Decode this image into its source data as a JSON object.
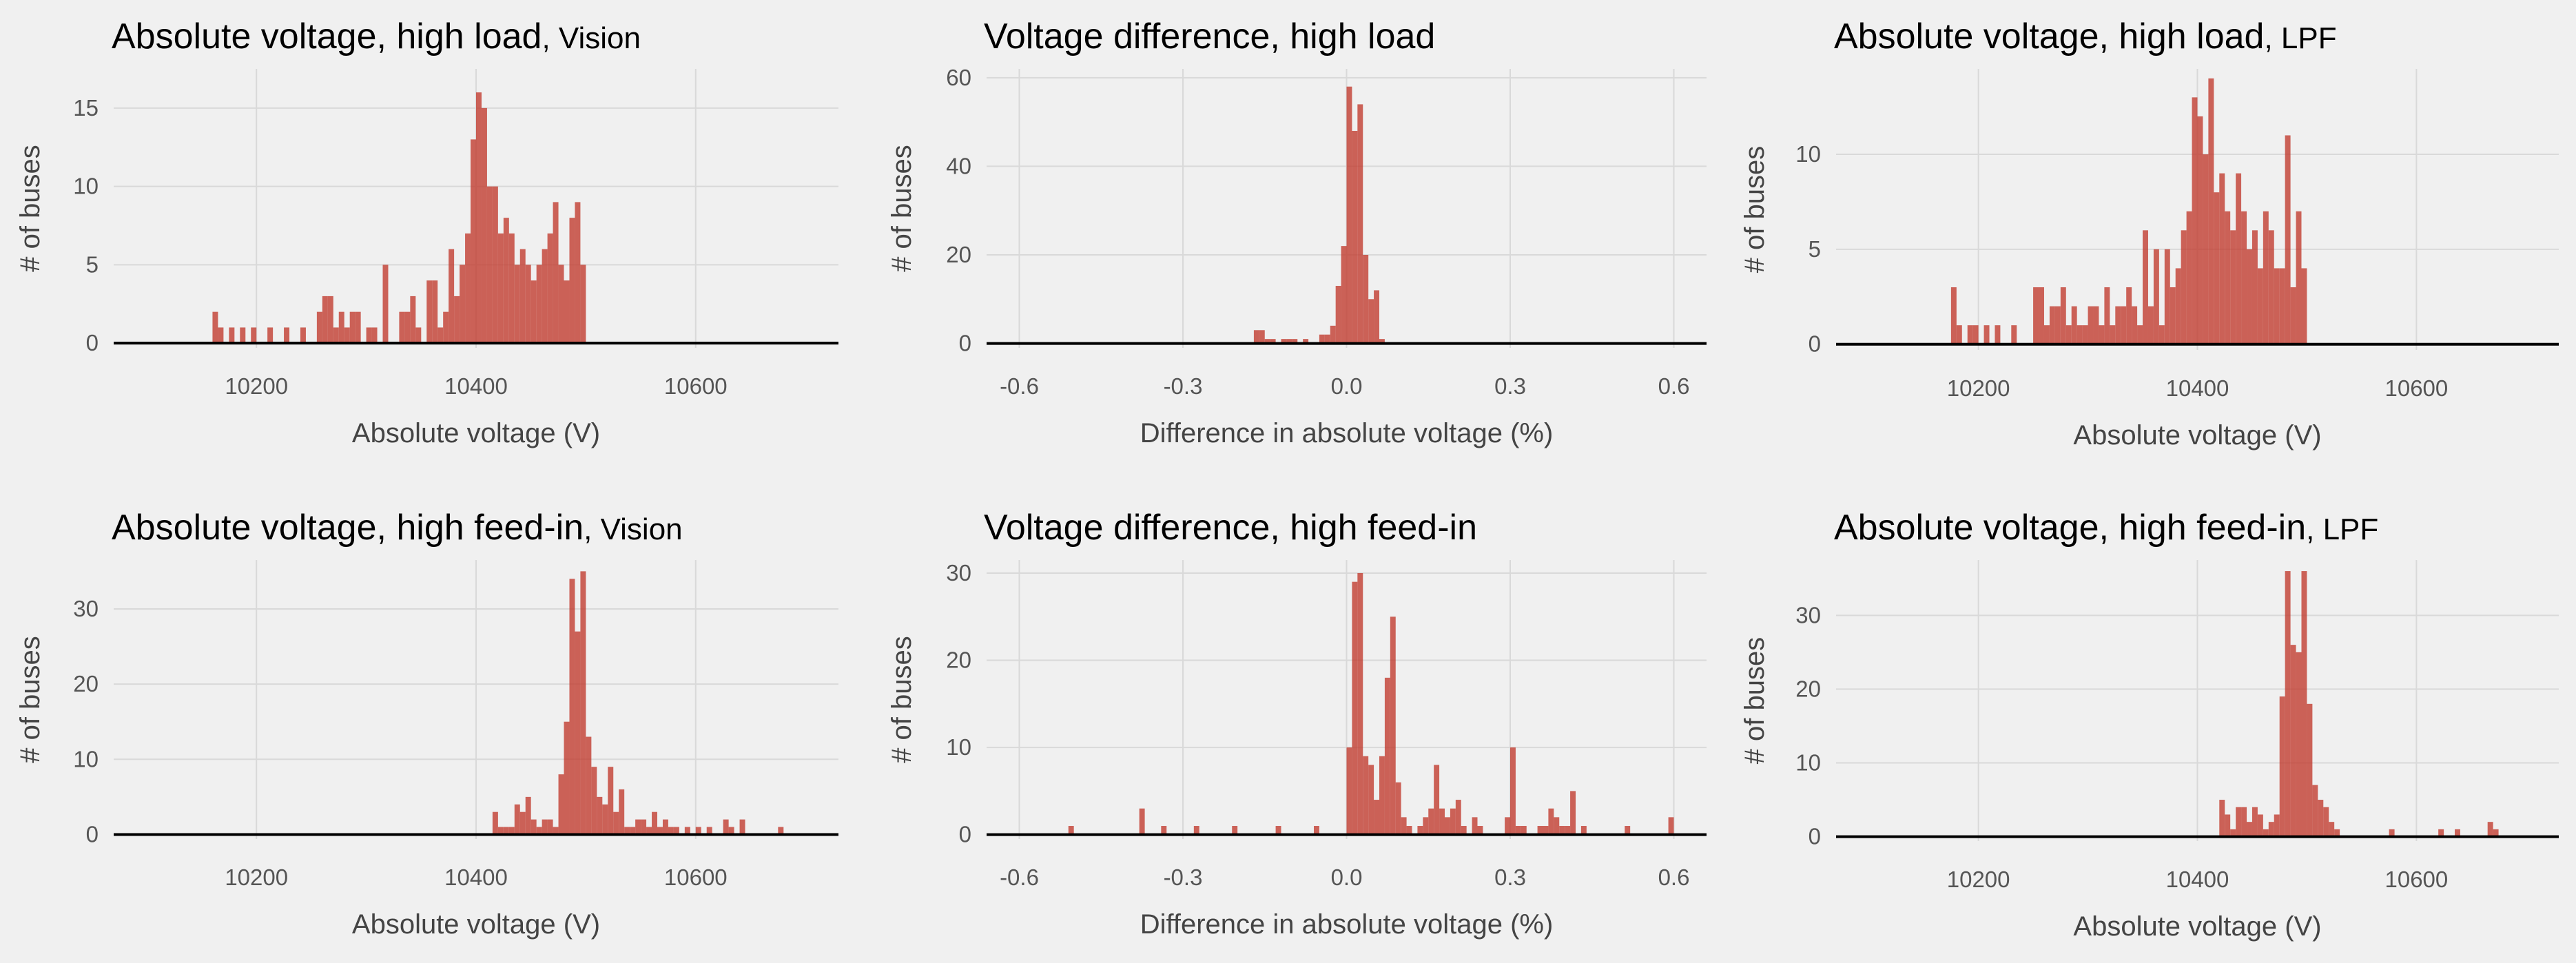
{
  "figure": {
    "background": "#f0f0f0",
    "bar_color": "#c0392b",
    "grid_color": "#d9d9d9"
  },
  "chart_data": [
    {
      "type": "bar",
      "title": "Absolute voltage, high load",
      "title_suffix": ", Vision",
      "xlabel": "Absolute voltage (V)",
      "ylabel": "# of buses",
      "xlim": [
        10070,
        10730
      ],
      "ylim": [
        -0.3,
        17.5
      ],
      "xticks": [
        10200,
        10400,
        10600
      ],
      "xtick_labels": [
        "10200",
        "10400",
        "10600"
      ],
      "yticks": [
        0,
        5,
        10,
        15
      ],
      "ytick_labels": [
        "0",
        "5",
        "10",
        "15"
      ],
      "grid": true,
      "bins": [
        [
          10160,
          2
        ],
        [
          10165,
          1
        ],
        [
          10175,
          1
        ],
        [
          10185,
          1
        ],
        [
          10195,
          1
        ],
        [
          10210,
          1
        ],
        [
          10225,
          1
        ],
        [
          10240,
          1
        ],
        [
          10255,
          2
        ],
        [
          10260,
          3
        ],
        [
          10265,
          3
        ],
        [
          10270,
          1
        ],
        [
          10275,
          2
        ],
        [
          10280,
          1
        ],
        [
          10285,
          2
        ],
        [
          10290,
          2
        ],
        [
          10300,
          1
        ],
        [
          10305,
          1
        ],
        [
          10315,
          5
        ],
        [
          10330,
          2
        ],
        [
          10335,
          2
        ],
        [
          10340,
          3
        ],
        [
          10345,
          1
        ],
        [
          10355,
          4
        ],
        [
          10360,
          4
        ],
        [
          10365,
          1
        ],
        [
          10370,
          2
        ],
        [
          10375,
          6
        ],
        [
          10380,
          3
        ],
        [
          10385,
          5
        ],
        [
          10390,
          7
        ],
        [
          10395,
          13
        ],
        [
          10400,
          16
        ],
        [
          10405,
          15
        ],
        [
          10410,
          10
        ],
        [
          10415,
          10
        ],
        [
          10420,
          7
        ],
        [
          10425,
          8
        ],
        [
          10430,
          7
        ],
        [
          10435,
          5
        ],
        [
          10440,
          6
        ],
        [
          10445,
          5
        ],
        [
          10450,
          4
        ],
        [
          10455,
          5
        ],
        [
          10460,
          6
        ],
        [
          10465,
          7
        ],
        [
          10470,
          9
        ],
        [
          10475,
          5
        ],
        [
          10480,
          4
        ],
        [
          10485,
          8
        ],
        [
          10490,
          9
        ],
        [
          10495,
          5
        ]
      ]
    },
    {
      "type": "bar",
      "title": "Voltage difference, high load",
      "xlabel": "Difference in absolute voltage (%)",
      "ylabel": "# of buses",
      "xlim": [
        -0.66,
        0.66
      ],
      "ylim": [
        -1,
        62
      ],
      "xticks": [
        -0.6,
        -0.3,
        0.0,
        0.3,
        0.6
      ],
      "xtick_labels": [
        "-0.6",
        "-0.3",
        "0.0",
        "0.3",
        "0.6"
      ],
      "yticks": [
        0,
        20,
        40,
        60
      ],
      "ytick_labels": [
        "0",
        "20",
        "40",
        "60"
      ],
      "grid": true,
      "bins": [
        [
          -0.17,
          3
        ],
        [
          -0.16,
          3
        ],
        [
          -0.15,
          1
        ],
        [
          -0.14,
          1
        ],
        [
          -0.12,
          1
        ],
        [
          -0.11,
          1
        ],
        [
          -0.1,
          1
        ],
        [
          -0.08,
          1
        ],
        [
          -0.05,
          2
        ],
        [
          -0.04,
          2
        ],
        [
          -0.03,
          4
        ],
        [
          -0.02,
          13
        ],
        [
          -0.01,
          22
        ],
        [
          0.0,
          58
        ],
        [
          0.01,
          48
        ],
        [
          0.02,
          54
        ],
        [
          0.03,
          20
        ],
        [
          0.04,
          10
        ],
        [
          0.05,
          12
        ],
        [
          0.06,
          1
        ]
      ]
    },
    {
      "type": "bar",
      "title": "Absolute voltage, high load",
      "title_suffix": ", LPF",
      "xlabel": "Absolute voltage (V)",
      "ylabel": "# of buses",
      "xlim": [
        10070,
        10730
      ],
      "ylim": [
        -0.3,
        14.5
      ],
      "xticks": [
        10200,
        10400,
        10600
      ],
      "xtick_labels": [
        "10200",
        "10400",
        "10600"
      ],
      "yticks": [
        0,
        5,
        10
      ],
      "ytick_labels": [
        "0",
        "5",
        "10"
      ],
      "grid": true,
      "bins": [
        [
          10175,
          3
        ],
        [
          10180,
          1
        ],
        [
          10190,
          1
        ],
        [
          10195,
          1
        ],
        [
          10205,
          1
        ],
        [
          10215,
          1
        ],
        [
          10230,
          1
        ],
        [
          10250,
          3
        ],
        [
          10255,
          3
        ],
        [
          10260,
          1
        ],
        [
          10265,
          2
        ],
        [
          10270,
          2
        ],
        [
          10275,
          3
        ],
        [
          10280,
          1
        ],
        [
          10285,
          2
        ],
        [
          10290,
          1
        ],
        [
          10295,
          1
        ],
        [
          10300,
          2
        ],
        [
          10305,
          2
        ],
        [
          10310,
          1
        ],
        [
          10315,
          3
        ],
        [
          10320,
          1
        ],
        [
          10325,
          2
        ],
        [
          10330,
          2
        ],
        [
          10335,
          3
        ],
        [
          10340,
          2
        ],
        [
          10345,
          1
        ],
        [
          10350,
          6
        ],
        [
          10355,
          2
        ],
        [
          10360,
          5
        ],
        [
          10365,
          1
        ],
        [
          10370,
          5
        ],
        [
          10375,
          3
        ],
        [
          10380,
          4
        ],
        [
          10385,
          6
        ],
        [
          10390,
          7
        ],
        [
          10395,
          13
        ],
        [
          10400,
          12
        ],
        [
          10405,
          10
        ],
        [
          10410,
          14
        ],
        [
          10415,
          8
        ],
        [
          10420,
          9
        ],
        [
          10425,
          7
        ],
        [
          10430,
          6
        ],
        [
          10435,
          9
        ],
        [
          10440,
          7
        ],
        [
          10445,
          5
        ],
        [
          10450,
          6
        ],
        [
          10455,
          4
        ],
        [
          10460,
          7
        ],
        [
          10465,
          6
        ],
        [
          10470,
          4
        ],
        [
          10475,
          4
        ],
        [
          10480,
          11
        ],
        [
          10485,
          3
        ],
        [
          10490,
          7
        ],
        [
          10495,
          4
        ]
      ]
    },
    {
      "type": "bar",
      "title": "Absolute voltage, high feed-in",
      "title_suffix": ", Vision",
      "xlabel": "Absolute voltage (V)",
      "ylabel": "# of buses",
      "xlim": [
        10070,
        10730
      ],
      "ylim": [
        -0.6,
        36.5
      ],
      "xticks": [
        10200,
        10400,
        10600
      ],
      "xtick_labels": [
        "10200",
        "10400",
        "10600"
      ],
      "yticks": [
        0,
        10,
        20,
        30
      ],
      "ytick_labels": [
        "0",
        "10",
        "20",
        "30"
      ],
      "grid": true,
      "bins": [
        [
          10415,
          3
        ],
        [
          10420,
          1
        ],
        [
          10425,
          1
        ],
        [
          10430,
          1
        ],
        [
          10435,
          4
        ],
        [
          10440,
          3
        ],
        [
          10445,
          5
        ],
        [
          10450,
          2
        ],
        [
          10455,
          1
        ],
        [
          10460,
          2
        ],
        [
          10465,
          2
        ],
        [
          10470,
          1
        ],
        [
          10475,
          8
        ],
        [
          10480,
          15
        ],
        [
          10485,
          34
        ],
        [
          10490,
          27
        ],
        [
          10495,
          35
        ],
        [
          10500,
          13
        ],
        [
          10505,
          9
        ],
        [
          10510,
          5
        ],
        [
          10515,
          4
        ],
        [
          10520,
          9
        ],
        [
          10525,
          3
        ],
        [
          10530,
          6
        ],
        [
          10535,
          1
        ],
        [
          10540,
          1
        ],
        [
          10545,
          2
        ],
        [
          10550,
          2
        ],
        [
          10555,
          1
        ],
        [
          10560,
          3
        ],
        [
          10565,
          1
        ],
        [
          10570,
          2
        ],
        [
          10575,
          1
        ],
        [
          10580,
          1
        ],
        [
          10590,
          1
        ],
        [
          10600,
          1
        ],
        [
          10610,
          1
        ],
        [
          10625,
          2
        ],
        [
          10630,
          1
        ],
        [
          10640,
          2
        ],
        [
          10675,
          1
        ]
      ]
    },
    {
      "type": "bar",
      "title": "Voltage difference, high feed-in",
      "xlabel": "Difference in absolute voltage (%)",
      "ylabel": "# of buses",
      "xlim": [
        -0.66,
        0.66
      ],
      "ylim": [
        -0.5,
        31.5
      ],
      "xticks": [
        -0.6,
        -0.3,
        0.0,
        0.3,
        0.6
      ],
      "xtick_labels": [
        "-0.6",
        "-0.3",
        "0.0",
        "0.3",
        "0.6"
      ],
      "yticks": [
        0,
        10,
        20,
        30
      ],
      "ytick_labels": [
        "0",
        "10",
        "20",
        "30"
      ],
      "grid": true,
      "bins": [
        [
          -0.51,
          1
        ],
        [
          -0.38,
          3
        ],
        [
          -0.34,
          1
        ],
        [
          -0.28,
          1
        ],
        [
          -0.21,
          1
        ],
        [
          -0.13,
          1
        ],
        [
          -0.06,
          1
        ],
        [
          0.0,
          10
        ],
        [
          0.01,
          29
        ],
        [
          0.02,
          30
        ],
        [
          0.03,
          9
        ],
        [
          0.04,
          8
        ],
        [
          0.05,
          4
        ],
        [
          0.06,
          9
        ],
        [
          0.07,
          18
        ],
        [
          0.08,
          25
        ],
        [
          0.09,
          6
        ],
        [
          0.1,
          2
        ],
        [
          0.11,
          1
        ],
        [
          0.13,
          1
        ],
        [
          0.14,
          2
        ],
        [
          0.15,
          3
        ],
        [
          0.16,
          8
        ],
        [
          0.17,
          3
        ],
        [
          0.18,
          2
        ],
        [
          0.19,
          3
        ],
        [
          0.2,
          4
        ],
        [
          0.21,
          1
        ],
        [
          0.23,
          2
        ],
        [
          0.24,
          1
        ],
        [
          0.29,
          2
        ],
        [
          0.3,
          10
        ],
        [
          0.31,
          1
        ],
        [
          0.32,
          1
        ],
        [
          0.35,
          1
        ],
        [
          0.36,
          1
        ],
        [
          0.37,
          3
        ],
        [
          0.38,
          2
        ],
        [
          0.39,
          1
        ],
        [
          0.4,
          1
        ],
        [
          0.41,
          5
        ],
        [
          0.43,
          1
        ],
        [
          0.51,
          1
        ],
        [
          0.59,
          2
        ]
      ]
    },
    {
      "type": "bar",
      "title": "Absolute voltage, high feed-in",
      "title_suffix": ", LPF",
      "xlabel": "Absolute voltage (V)",
      "ylabel": "# of buses",
      "xlim": [
        10070,
        10730
      ],
      "ylim": [
        -0.6,
        37.5
      ],
      "xticks": [
        10200,
        10400,
        10600
      ],
      "xtick_labels": [
        "10200",
        "10400",
        "10600"
      ],
      "yticks": [
        0,
        10,
        20,
        30
      ],
      "ytick_labels": [
        "0",
        "10",
        "20",
        "30"
      ],
      "grid": true,
      "bins": [
        [
          10420,
          5
        ],
        [
          10425,
          3
        ],
        [
          10430,
          1
        ],
        [
          10435,
          4
        ],
        [
          10440,
          4
        ],
        [
          10445,
          2
        ],
        [
          10450,
          4
        ],
        [
          10455,
          3
        ],
        [
          10460,
          1
        ],
        [
          10465,
          2
        ],
        [
          10470,
          3
        ],
        [
          10475,
          19
        ],
        [
          10480,
          36
        ],
        [
          10485,
          26
        ],
        [
          10490,
          25
        ],
        [
          10495,
          36
        ],
        [
          10500,
          18
        ],
        [
          10505,
          7
        ],
        [
          10510,
          5
        ],
        [
          10515,
          4
        ],
        [
          10520,
          2
        ],
        [
          10525,
          1
        ],
        [
          10575,
          1
        ],
        [
          10620,
          1
        ],
        [
          10635,
          1
        ],
        [
          10665,
          2
        ],
        [
          10670,
          1
        ]
      ]
    }
  ]
}
